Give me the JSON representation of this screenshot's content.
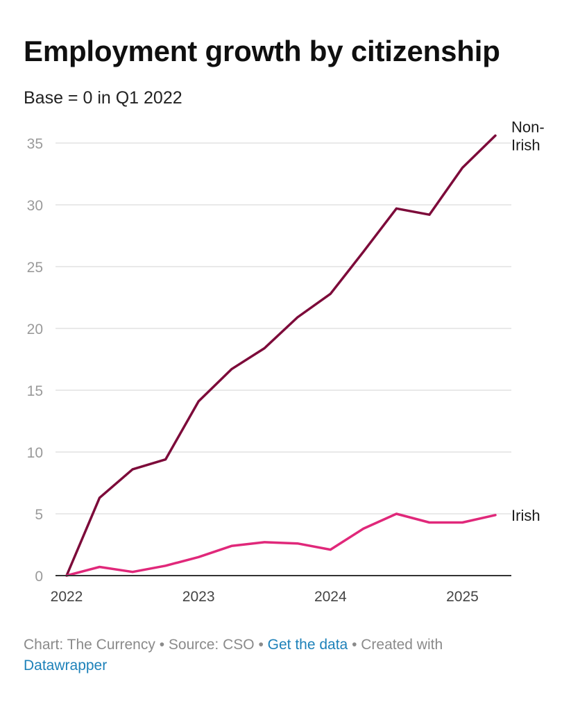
{
  "title": "Employment growth by citizenship",
  "subtitle": "Base = 0 in Q1 2022",
  "footer": {
    "chart_credit": "Chart: The Currency",
    "separator": " • ",
    "source": "Source: CSO",
    "data_link": "Get the data",
    "created_with": "Created with",
    "tool": "Datawrapper"
  },
  "colors": {
    "non_irish": "#7d0b3a",
    "irish": "#e0287a",
    "grid": "#e2e2e2",
    "axis": "#333333",
    "tick_text": "#9a9a9a",
    "link": "#1d81b9"
  },
  "chart_data": {
    "type": "line",
    "title": "Employment growth by citizenship",
    "subtitle": "Base = 0 in Q1 2022",
    "x": [
      2022.0,
      2022.25,
      2022.5,
      2022.75,
      2023.0,
      2023.25,
      2023.5,
      2023.75,
      2024.0,
      2024.25,
      2024.5,
      2024.75,
      2025.0,
      2025.25
    ],
    "xticks": [
      "2022",
      "2023",
      "2024",
      "2025"
    ],
    "yticks": [
      "0",
      "5",
      "10",
      "15",
      "20",
      "25",
      "30",
      "35"
    ],
    "ylim": [
      0,
      35
    ],
    "grid": true,
    "series": [
      {
        "name": "Non-Irish",
        "label_lines": [
          "Non-",
          "Irish"
        ],
        "values": [
          0,
          6.3,
          8.6,
          9.4,
          14.1,
          16.7,
          18.4,
          20.9,
          22.8,
          26.2,
          29.7,
          29.2,
          33.0,
          35.6
        ]
      },
      {
        "name": "Irish",
        "label_lines": [
          "Irish"
        ],
        "values": [
          0,
          0.7,
          0.3,
          0.8,
          1.5,
          2.4,
          2.7,
          2.6,
          2.1,
          3.8,
          5.0,
          4.3,
          4.3,
          4.9
        ]
      }
    ]
  }
}
